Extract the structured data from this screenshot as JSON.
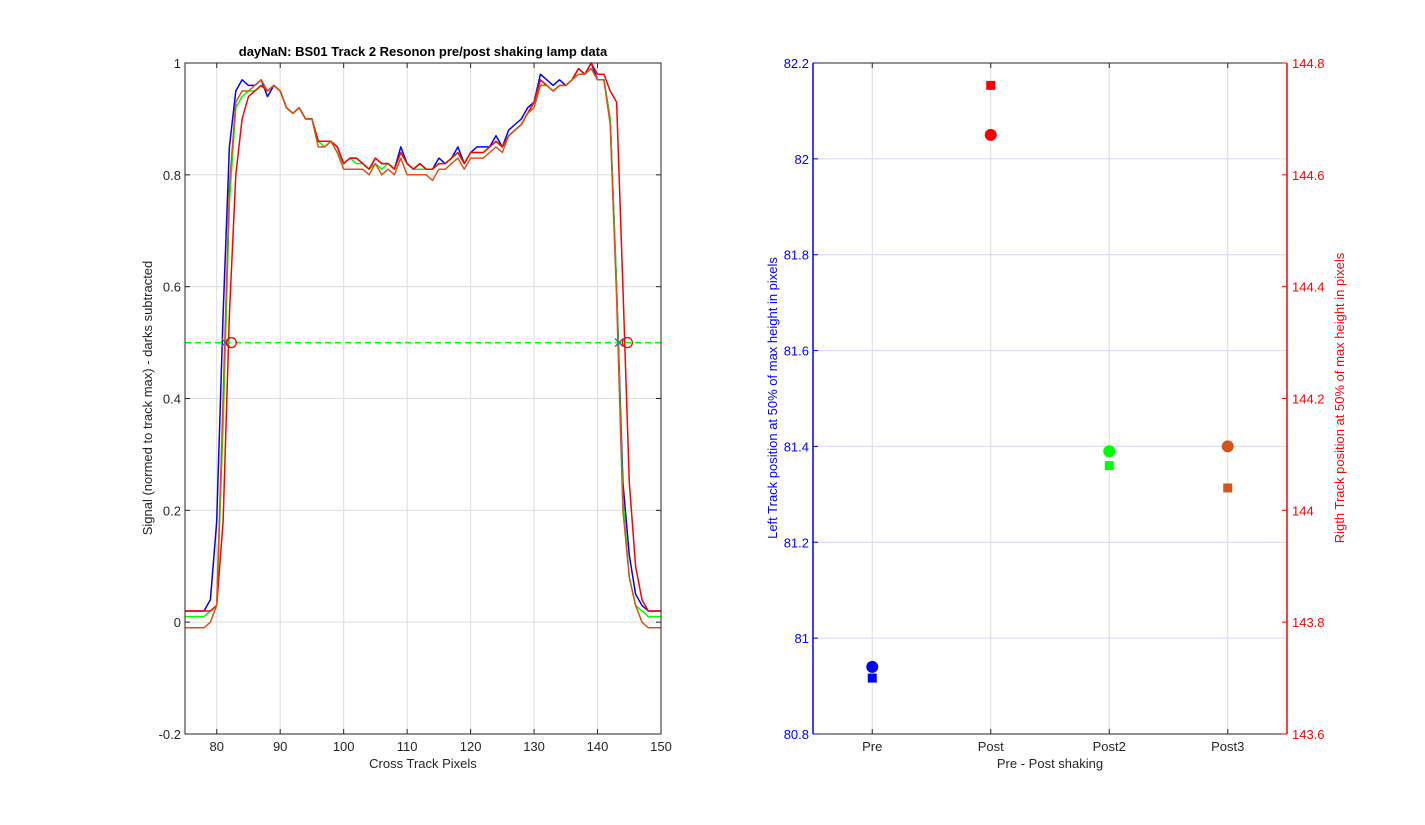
{
  "figure": {
    "background": "#ffffff"
  },
  "chart_data": [
    {
      "type": "line",
      "title": "dayNaN: BS01  Track 2 Resonon pre/post shaking lamp data",
      "xlabel": "Cross Track Pixels",
      "ylabel": "Signal (normed to track max) - darks subtracted",
      "xlim": [
        75,
        150
      ],
      "ylim": [
        -0.2,
        1
      ],
      "xticks": [
        80,
        90,
        100,
        110,
        120,
        130,
        140,
        150
      ],
      "yticks": [
        -0.2,
        0,
        0.2,
        0.4,
        0.6,
        0.8,
        1
      ],
      "grid": true,
      "threshold": {
        "y": 0.5,
        "color": "#00ff00",
        "style": "dashed"
      },
      "x": [
        75,
        76,
        77,
        78,
        79,
        80,
        81,
        82,
        83,
        84,
        85,
        86,
        87,
        88,
        89,
        90,
        91,
        92,
        93,
        94,
        95,
        96,
        97,
        98,
        99,
        100,
        101,
        102,
        103,
        104,
        105,
        106,
        107,
        108,
        109,
        110,
        111,
        112,
        113,
        114,
        115,
        116,
        117,
        118,
        119,
        120,
        121,
        122,
        123,
        124,
        125,
        126,
        127,
        128,
        129,
        130,
        131,
        132,
        133,
        134,
        135,
        136,
        137,
        138,
        139,
        140,
        141,
        142,
        143,
        144,
        145,
        146,
        147,
        148,
        149,
        150
      ],
      "series": [
        {
          "color": "#0000ff",
          "values": [
            0.02,
            0.02,
            0.02,
            0.02,
            0.04,
            0.18,
            0.55,
            0.85,
            0.95,
            0.97,
            0.96,
            0.96,
            0.97,
            0.94,
            0.96,
            0.95,
            0.92,
            0.91,
            0.92,
            0.9,
            0.9,
            0.86,
            0.86,
            0.86,
            0.85,
            0.82,
            0.83,
            0.83,
            0.82,
            0.81,
            0.83,
            0.82,
            0.82,
            0.81,
            0.85,
            0.82,
            0.81,
            0.82,
            0.81,
            0.81,
            0.83,
            0.82,
            0.83,
            0.85,
            0.82,
            0.84,
            0.85,
            0.85,
            0.85,
            0.87,
            0.85,
            0.88,
            0.89,
            0.9,
            0.92,
            0.93,
            0.98,
            0.97,
            0.96,
            0.97,
            0.96,
            0.97,
            0.99,
            0.98,
            1.0,
            0.97,
            0.97,
            0.9,
            0.6,
            0.25,
            0.12,
            0.05,
            0.03,
            0.02,
            0.02,
            0.02
          ]
        },
        {
          "color": "#00ff00",
          "values": [
            0.01,
            0.01,
            0.01,
            0.01,
            0.02,
            0.03,
            0.35,
            0.75,
            0.92,
            0.94,
            0.95,
            0.95,
            0.96,
            0.95,
            0.96,
            0.95,
            0.92,
            0.91,
            0.92,
            0.9,
            0.9,
            0.86,
            0.85,
            0.86,
            0.84,
            0.82,
            0.83,
            0.82,
            0.82,
            0.81,
            0.82,
            0.81,
            0.82,
            0.81,
            0.84,
            0.82,
            0.81,
            0.81,
            0.81,
            0.81,
            0.82,
            0.82,
            0.83,
            0.84,
            0.82,
            0.84,
            0.84,
            0.84,
            0.85,
            0.86,
            0.85,
            0.87,
            0.88,
            0.89,
            0.91,
            0.93,
            0.96,
            0.96,
            0.95,
            0.96,
            0.96,
            0.97,
            0.99,
            0.98,
            0.99,
            0.97,
            0.97,
            0.9,
            0.6,
            0.22,
            0.08,
            0.03,
            0.02,
            0.01,
            0.01,
            0.01
          ]
        },
        {
          "color": "#ff0000",
          "values": [
            0.02,
            0.02,
            0.02,
            0.02,
            0.02,
            0.03,
            0.18,
            0.55,
            0.8,
            0.9,
            0.94,
            0.95,
            0.96,
            0.95,
            0.96,
            0.95,
            0.92,
            0.91,
            0.92,
            0.9,
            0.9,
            0.86,
            0.86,
            0.86,
            0.85,
            0.82,
            0.83,
            0.83,
            0.82,
            0.81,
            0.83,
            0.82,
            0.82,
            0.81,
            0.84,
            0.82,
            0.81,
            0.82,
            0.81,
            0.81,
            0.82,
            0.82,
            0.83,
            0.84,
            0.82,
            0.84,
            0.84,
            0.84,
            0.85,
            0.86,
            0.85,
            0.87,
            0.88,
            0.89,
            0.91,
            0.93,
            0.97,
            0.96,
            0.95,
            0.96,
            0.96,
            0.97,
            0.99,
            0.98,
            1.0,
            0.98,
            0.98,
            0.95,
            0.93,
            0.6,
            0.25,
            0.1,
            0.04,
            0.02,
            0.02,
            0.02
          ]
        },
        {
          "color": "#d95319",
          "values": [
            -0.01,
            -0.01,
            -0.01,
            -0.01,
            0.0,
            0.03,
            0.4,
            0.78,
            0.93,
            0.95,
            0.95,
            0.96,
            0.97,
            0.95,
            0.96,
            0.95,
            0.92,
            0.91,
            0.92,
            0.9,
            0.9,
            0.85,
            0.85,
            0.86,
            0.84,
            0.81,
            0.81,
            0.81,
            0.81,
            0.8,
            0.82,
            0.8,
            0.81,
            0.8,
            0.83,
            0.8,
            0.8,
            0.8,
            0.8,
            0.79,
            0.81,
            0.81,
            0.82,
            0.83,
            0.81,
            0.83,
            0.83,
            0.83,
            0.84,
            0.85,
            0.84,
            0.87,
            0.88,
            0.89,
            0.91,
            0.92,
            0.96,
            0.96,
            0.95,
            0.96,
            0.96,
            0.97,
            0.98,
            0.98,
            0.99,
            0.97,
            0.97,
            0.89,
            0.58,
            0.2,
            0.08,
            0.03,
            0.0,
            -0.01,
            -0.01,
            -0.01
          ]
        }
      ],
      "crossings": [
        {
          "x": 81.4,
          "y": 0.5,
          "marker": "x",
          "color": "#4d6e9e"
        },
        {
          "x": 82.3,
          "y": 0.5,
          "marker": "o",
          "color": "#ff0000"
        },
        {
          "x": 143.4,
          "y": 0.5,
          "marker": "x",
          "color": "#4d6e9e"
        },
        {
          "x": 144.7,
          "y": 0.5,
          "marker": "o",
          "color": "#ff0000"
        }
      ]
    },
    {
      "type": "scatter",
      "xlabel": "Pre - Post shaking",
      "ylabel": "Left Track position at 50% of max height in pixels",
      "y2label": "Rigth Track position at 50% of max height in pixels",
      "categories": [
        "Pre",
        "Post",
        "Post2",
        "Post3"
      ],
      "ylim": [
        80.8,
        82.2
      ],
      "yticks": [
        80.8,
        81,
        81.2,
        81.4,
        81.6,
        81.8,
        82,
        82.2
      ],
      "y2lim": [
        143.6,
        144.8
      ],
      "y2ticks": [
        143.6,
        143.8,
        144,
        144.2,
        144.4,
        144.6,
        144.8
      ],
      "left_axis_color": "#0000ff",
      "right_axis_color": "#ff0000",
      "grid": true,
      "points": [
        {
          "category": "Pre",
          "left": 80.94,
          "right": 143.7,
          "color": "#0000ff"
        },
        {
          "category": "Post",
          "left": 82.05,
          "right": 144.76,
          "color": "#ff0000"
        },
        {
          "category": "Post2",
          "left": 81.39,
          "right": 144.08,
          "color": "#00ff00"
        },
        {
          "category": "Post3",
          "left": 81.4,
          "right": 144.04,
          "color": "#d95319"
        }
      ],
      "markers": {
        "left": "circle",
        "right": "square"
      }
    }
  ]
}
